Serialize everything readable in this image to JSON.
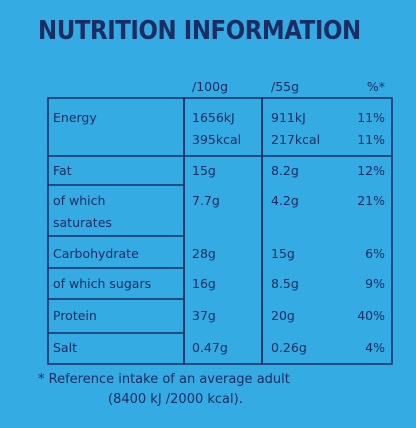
{
  "title": "NUTRITION INFORMATION",
  "headers": {
    "per100": "/100g",
    "per55": "/55g",
    "ri": "%*"
  },
  "rows": [
    {
      "label": "Energy",
      "per100": "1656kJ\n395kcal",
      "per55": "911kJ\n217kcal",
      "ri": "11%\n11%"
    },
    {
      "label": "Fat",
      "per100": "15g",
      "per55": "8.2g",
      "ri": "12%"
    },
    {
      "label": "of which\nsaturates",
      "per100": "7.7g",
      "per55": "4.2g",
      "ri": "21%"
    },
    {
      "label": "Carbohydrate",
      "per100": "28g",
      "per55": "15g",
      "ri": "6%"
    },
    {
      "label": "of which sugars",
      "per100": "16g",
      "per55": "8.5g",
      "ri": "9%"
    },
    {
      "label": "Protein",
      "per100": "37g",
      "per55": "20g",
      "ri": "40%"
    },
    {
      "label": "Salt",
      "per100": "0.47g",
      "per55": "0.26g",
      "ri": "4%"
    }
  ],
  "footnote": {
    "line1": "* Reference intake of an average adult",
    "line2": "(8400 kJ /2000 kcal)."
  }
}
